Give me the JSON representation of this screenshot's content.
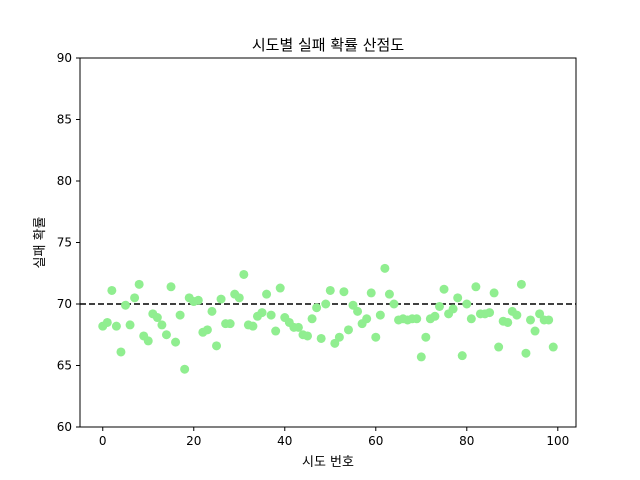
{
  "chart_data": {
    "type": "scatter",
    "title": "시도별 실패 확률 산점도",
    "xlabel": "시도 번호",
    "ylabel": "실패 확률",
    "xlim": [
      -5,
      104
    ],
    "ylim": [
      60,
      90
    ],
    "xticks": [
      0,
      20,
      40,
      60,
      80,
      100
    ],
    "yticks": [
      60,
      65,
      70,
      75,
      80,
      85,
      90
    ],
    "grid": false,
    "point_color": "#90ee90",
    "reference_line": {
      "y": 70,
      "style": "dashed",
      "color": "#000000"
    },
    "x": [
      0,
      1,
      2,
      3,
      4,
      5,
      6,
      7,
      8,
      9,
      10,
      11,
      12,
      13,
      14,
      15,
      16,
      17,
      18,
      19,
      20,
      21,
      22,
      23,
      24,
      25,
      26,
      27,
      28,
      29,
      30,
      31,
      32,
      33,
      34,
      35,
      36,
      37,
      38,
      39,
      40,
      41,
      42,
      43,
      44,
      45,
      46,
      47,
      48,
      49,
      50,
      51,
      52,
      53,
      54,
      55,
      56,
      57,
      58,
      59,
      60,
      61,
      62,
      63,
      64,
      65,
      66,
      67,
      68,
      69,
      70,
      71,
      72,
      73,
      74,
      75,
      76,
      77,
      78,
      79,
      80,
      81,
      82,
      83,
      84,
      85,
      86,
      87,
      88,
      89,
      90,
      91,
      92,
      93,
      94,
      95,
      96,
      97,
      98,
      99
    ],
    "y": [
      68.2,
      68.5,
      71.1,
      68.2,
      66.1,
      69.9,
      68.3,
      70.5,
      71.6,
      67.4,
      67.0,
      69.2,
      68.9,
      68.3,
      67.5,
      71.4,
      66.9,
      69.1,
      64.7,
      70.5,
      70.2,
      70.3,
      67.7,
      67.9,
      69.4,
      66.6,
      70.4,
      68.4,
      68.4,
      70.8,
      70.5,
      72.4,
      68.3,
      68.2,
      69.0,
      69.3,
      70.8,
      69.1,
      67.8,
      71.3,
      68.9,
      68.5,
      68.1,
      68.1,
      67.5,
      67.4,
      68.8,
      69.7,
      67.2,
      70.0,
      71.1,
      66.8,
      67.3,
      71.0,
      67.9,
      69.9,
      69.4,
      68.4,
      68.8,
      70.9,
      67.3,
      69.1,
      72.9,
      70.8,
      70.0,
      68.7,
      68.8,
      68.7,
      68.8,
      68.8,
      65.7,
      67.3,
      68.8,
      69.0,
      69.8,
      71.2,
      69.2,
      69.6,
      70.5,
      65.8,
      70.0,
      68.8,
      71.4,
      69.2,
      69.2,
      69.3,
      70.9,
      66.5,
      68.6,
      68.5,
      69.4,
      69.1,
      71.6,
      66.0,
      68.7,
      67.8,
      69.2,
      68.7,
      68.7,
      66.5
    ]
  }
}
